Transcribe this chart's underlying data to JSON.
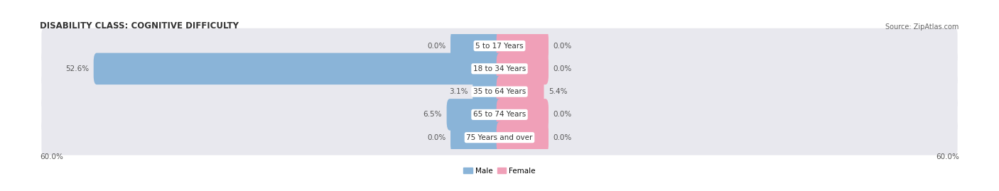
{
  "title": "DISABILITY CLASS: COGNITIVE DIFFICULTY",
  "source": "Source: ZipAtlas.com",
  "age_groups": [
    "5 to 17 Years",
    "18 to 34 Years",
    "35 to 64 Years",
    "65 to 74 Years",
    "75 Years and over"
  ],
  "male_values": [
    0.0,
    52.6,
    3.1,
    6.5,
    0.0
  ],
  "female_values": [
    0.0,
    0.0,
    5.4,
    0.0,
    0.0
  ],
  "x_max": 60.0,
  "male_color": "#8ab4d8",
  "female_color": "#f0a0b8",
  "row_bg_color": "#e8e8ee",
  "title_fontsize": 8.5,
  "label_fontsize": 7.5,
  "tick_fontsize": 7.5,
  "title_color": "#333333",
  "source_color": "#666666",
  "value_color": "#555555",
  "center_label_color": "#333333",
  "stub_bar_width": 6.0
}
